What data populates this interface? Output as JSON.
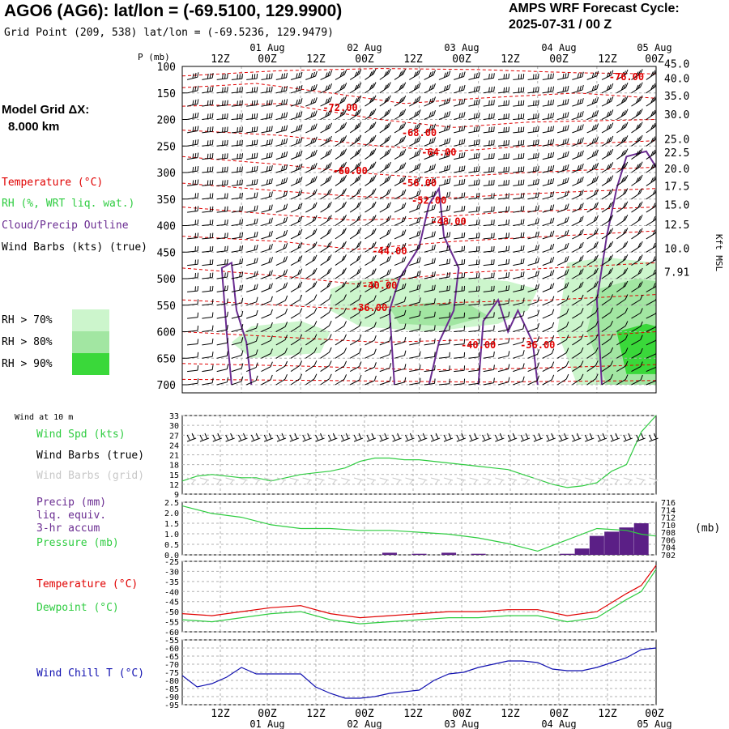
{
  "header": {
    "title": "AGO6 (AG6):  lat/lon = (-69.5100, 129.9900)",
    "grid_point": "Grid Point (209, 538) lat/lon = (-69.5236, 129.9479)",
    "cycle_line1": "AMPS WRF Forecast Cycle:",
    "cycle_line2": "2025-07-31 / 00  Z",
    "model_grid_line1": "Model Grid ΔX:",
    "model_grid_line2": "8.000 km"
  },
  "time_axis": {
    "hour_labels": [
      "12Z",
      "00Z",
      "12Z",
      "00Z",
      "12Z",
      "00Z",
      "12Z",
      "00Z",
      "12Z",
      "00Z"
    ],
    "day_labels": [
      "01 Aug",
      "02 Aug",
      "03 Aug",
      "04 Aug",
      "05 Aug"
    ]
  },
  "colors": {
    "temperature": "#e00000",
    "rh": "#2ecc40",
    "cloud": "#6a2c91",
    "wind_chill": "#1010b0",
    "grid": "#b0b0b0",
    "precip": "#5b1f86",
    "rh70": "#ccf5cc",
    "rh80": "#a2e6a2",
    "rh90": "#3ad83a"
  },
  "legend": {
    "temperature": "Temperature (°C)",
    "rh": "RH (%, WRT liq. wat.)",
    "cloud": "Cloud/Precip Outline",
    "wind": "Wind Barbs (kts) (true)",
    "rh70": "RH > 70%",
    "rh80": "RH > 80%",
    "rh90": "RH > 90%"
  },
  "panel_labels": {
    "wind10": "Wind at 10 m",
    "wind_spd": "Wind Spd (kts)",
    "wind_barbs_true": "Wind Barbs (true)",
    "wind_barbs_grid": "Wind Barbs (grid)",
    "precip1": "Precip (mm)",
    "precip2": "liq. equiv.",
    "precip3": "3-hr accum",
    "pressure": "Pressure (mb)",
    "pressure_unit": "(mb)",
    "temp": "Temperature (°C)",
    "dew": "Dewpoint (°C)",
    "chill": "Wind Chill T (°C)"
  },
  "chart_data": [
    {
      "type": "line",
      "panel": "cross-section",
      "ylabel": "P (mb)",
      "y2label": "Kft MSL",
      "pressure_ticks": [
        100,
        150,
        200,
        250,
        300,
        350,
        400,
        450,
        500,
        550,
        600,
        650,
        700
      ],
      "height_ticks": [
        "45.0",
        "40.0",
        "35.0",
        "30.0",
        "25.0",
        "22.5",
        "20.0",
        "17.5",
        "15.0",
        "12.5",
        "10.0",
        "7.91"
      ],
      "height_tick_pressures": [
        95,
        122,
        155,
        190,
        237,
        262,
        292,
        325,
        360,
        398,
        443,
        487
      ],
      "isotherm_labels": [
        {
          "label": "-76.00",
          "t": 90,
          "p": 120
        },
        {
          "label": "-72.00",
          "t": 32,
          "p": 178
        },
        {
          "label": "-68.00",
          "t": 48,
          "p": 225
        },
        {
          "label": "-64.00",
          "t": 52,
          "p": 262
        },
        {
          "label": "-60.00",
          "t": 34,
          "p": 297
        },
        {
          "label": "-56.00",
          "t": 48,
          "p": 320
        },
        {
          "label": "-52.00",
          "t": 50,
          "p": 353
        },
        {
          "label": "-48.00",
          "t": 54,
          "p": 392
        },
        {
          "label": "-44.00",
          "t": 42,
          "p": 448
        },
        {
          "label": "-40.00",
          "t": 40,
          "p": 513
        },
        {
          "label": "-36.00",
          "t": 38,
          "p": 555
        },
        {
          "label": "-40.00",
          "t": 60,
          "p": 625
        },
        {
          "label": "-36.00",
          "t": 72,
          "p": 625
        }
      ]
    },
    {
      "type": "line",
      "panel": "wind",
      "ylim": [
        9,
        33
      ],
      "yticks": [
        9,
        12,
        15,
        18,
        21,
        24,
        27,
        30,
        33
      ],
      "series": [
        {
          "name": "Wind Spd (kts)",
          "t": [
            0,
            3,
            6,
            9,
            12,
            15,
            18,
            21,
            24,
            27,
            30,
            33,
            36,
            39,
            42,
            45,
            48,
            51,
            54,
            57,
            60,
            63,
            66,
            69,
            72,
            75,
            78,
            81,
            84,
            87,
            90,
            93,
            96
          ],
          "values": [
            13,
            14.5,
            15,
            14.5,
            14,
            14,
            13,
            14,
            15,
            15.5,
            16,
            17,
            19,
            20,
            20,
            19.5,
            19.5,
            19,
            18.5,
            18,
            17.5,
            17,
            16.5,
            15,
            13.5,
            12,
            11,
            11.5,
            12.5,
            16,
            18,
            28,
            33
          ]
        }
      ]
    },
    {
      "type": "line",
      "panel": "precip-pressure",
      "ylim": [
        0,
        2.5
      ],
      "yticks": [
        "2.5",
        "2.0",
        "1.5",
        "1.0",
        "0.5",
        "0.0"
      ],
      "y2lim": [
        702,
        716
      ],
      "y2ticks": [
        "716",
        "714",
        "712",
        "710",
        "708",
        "706",
        "704",
        "702"
      ],
      "series": [
        {
          "name": "Pressure (mb)",
          "t": [
            0,
            6,
            12,
            18,
            24,
            30,
            36,
            42,
            48,
            54,
            60,
            66,
            72,
            78,
            84,
            90,
            93,
            96
          ],
          "values": [
            715,
            713,
            712,
            710,
            709,
            709,
            708.5,
            708.5,
            708,
            707.5,
            706.5,
            705,
            703,
            706,
            709,
            708.5,
            707.5,
            707
          ]
        }
      ],
      "precip_bars": {
        "t": [
          42,
          48,
          54,
          60,
          78,
          81,
          84,
          87,
          90,
          93
        ],
        "values": [
          0.1,
          0.05,
          0.1,
          0.05,
          0.05,
          0.3,
          0.9,
          1.1,
          1.3,
          1.5
        ]
      }
    },
    {
      "type": "line",
      "panel": "temperature",
      "ylim": [
        -60,
        -25
      ],
      "yticks": [
        -25,
        -30,
        -35,
        -40,
        -45,
        -50,
        -55,
        -60
      ],
      "series": [
        {
          "name": "Temperature (°C)",
          "t": [
            0,
            6,
            12,
            18,
            24,
            30,
            36,
            42,
            48,
            54,
            60,
            66,
            72,
            78,
            84,
            90,
            93,
            96
          ],
          "values": [
            -51,
            -52,
            -50,
            -48,
            -47,
            -51,
            -53,
            -52,
            -51,
            -50,
            -50,
            -49,
            -49,
            -52,
            -50,
            -41,
            -37,
            -27
          ]
        },
        {
          "name": "Dewpoint (°C)",
          "t": [
            0,
            6,
            12,
            18,
            24,
            30,
            36,
            42,
            48,
            54,
            60,
            66,
            72,
            78,
            84,
            90,
            93,
            96
          ],
          "values": [
            -54,
            -55,
            -53,
            -51,
            -50,
            -54,
            -56,
            -55,
            -54,
            -53,
            -53,
            -52,
            -52,
            -55,
            -53,
            -44,
            -40,
            -29
          ]
        }
      ]
    },
    {
      "type": "line",
      "panel": "wind-chill",
      "ylim": [
        -95,
        -55
      ],
      "yticks": [
        -55,
        -60,
        -65,
        -70,
        -75,
        -80,
        -85,
        -90,
        -95
      ],
      "series": [
        {
          "name": "Wind Chill T (°C)",
          "t": [
            0,
            3,
            6,
            9,
            12,
            15,
            18,
            21,
            24,
            27,
            30,
            33,
            36,
            39,
            42,
            45,
            48,
            51,
            54,
            57,
            60,
            63,
            66,
            69,
            72,
            75,
            78,
            81,
            84,
            87,
            90,
            93,
            96
          ],
          "values": [
            -77,
            -84,
            -82,
            -78,
            -72,
            -76,
            -76,
            -76,
            -76,
            -84,
            -88,
            -91,
            -91,
            -90,
            -88,
            -87,
            -86,
            -80,
            -76,
            -75,
            -72,
            -70,
            -68,
            -68,
            -69,
            -73,
            -74,
            -74,
            -72,
            -69,
            -66,
            -61,
            -60
          ]
        }
      ]
    }
  ]
}
